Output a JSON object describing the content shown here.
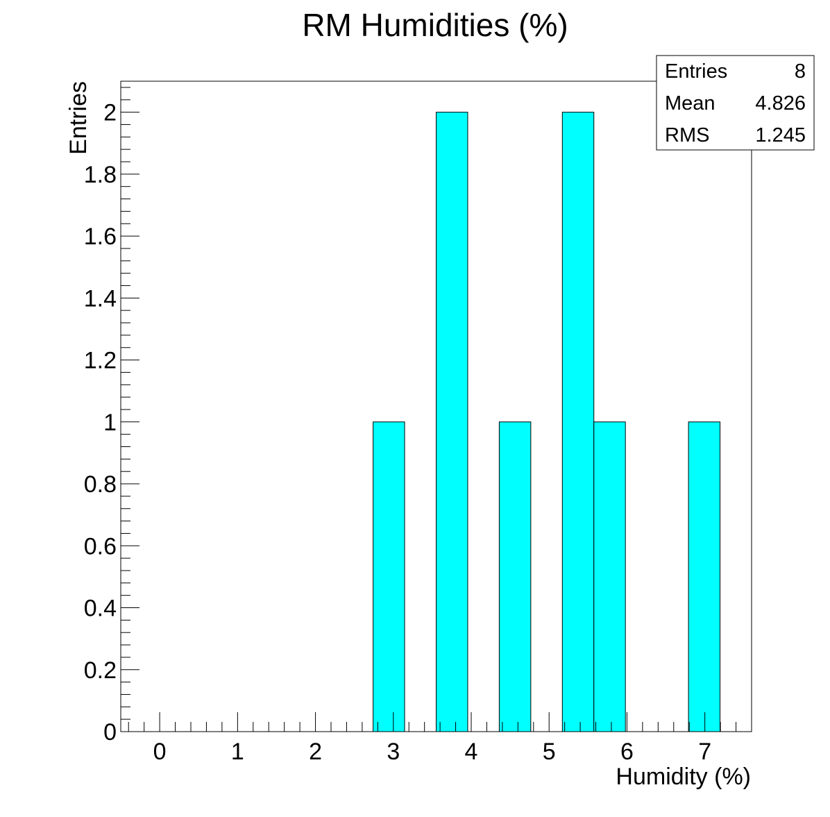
{
  "chart_data": {
    "type": "bar",
    "title": "RM Humidities (%)",
    "xlabel": "Humidity (%)",
    "ylabel": "Entries",
    "xlim": [
      -0.5,
      7.6
    ],
    "ylim": [
      0,
      2.1
    ],
    "x_ticks": [
      0,
      1,
      2,
      3,
      4,
      5,
      6,
      7
    ],
    "y_ticks": [
      0,
      0.2,
      0.4,
      0.6,
      0.8,
      1,
      1.2,
      1.4,
      1.6,
      1.8,
      2
    ],
    "y_tick_labels": [
      "0",
      "0.2",
      "0.4",
      "0.6",
      "0.8",
      "1",
      "1.2",
      "1.4",
      "1.6",
      "1.8",
      "2"
    ],
    "bin_width": 0.405,
    "bins": [
      {
        "x_low": 2.74,
        "value": 1
      },
      {
        "x_low": 3.55,
        "value": 2
      },
      {
        "x_low": 4.36,
        "value": 1
      },
      {
        "x_low": 5.17,
        "value": 2
      },
      {
        "x_low": 5.575,
        "value": 1
      },
      {
        "x_low": 6.79,
        "value": 1
      }
    ],
    "fill_color": "#00ffff",
    "stats_box": {
      "rows": [
        {
          "label": "Entries",
          "value": "8"
        },
        {
          "label": "Mean",
          "value": "4.826"
        },
        {
          "label": "RMS",
          "value": "1.245"
        }
      ]
    },
    "grid": false
  }
}
